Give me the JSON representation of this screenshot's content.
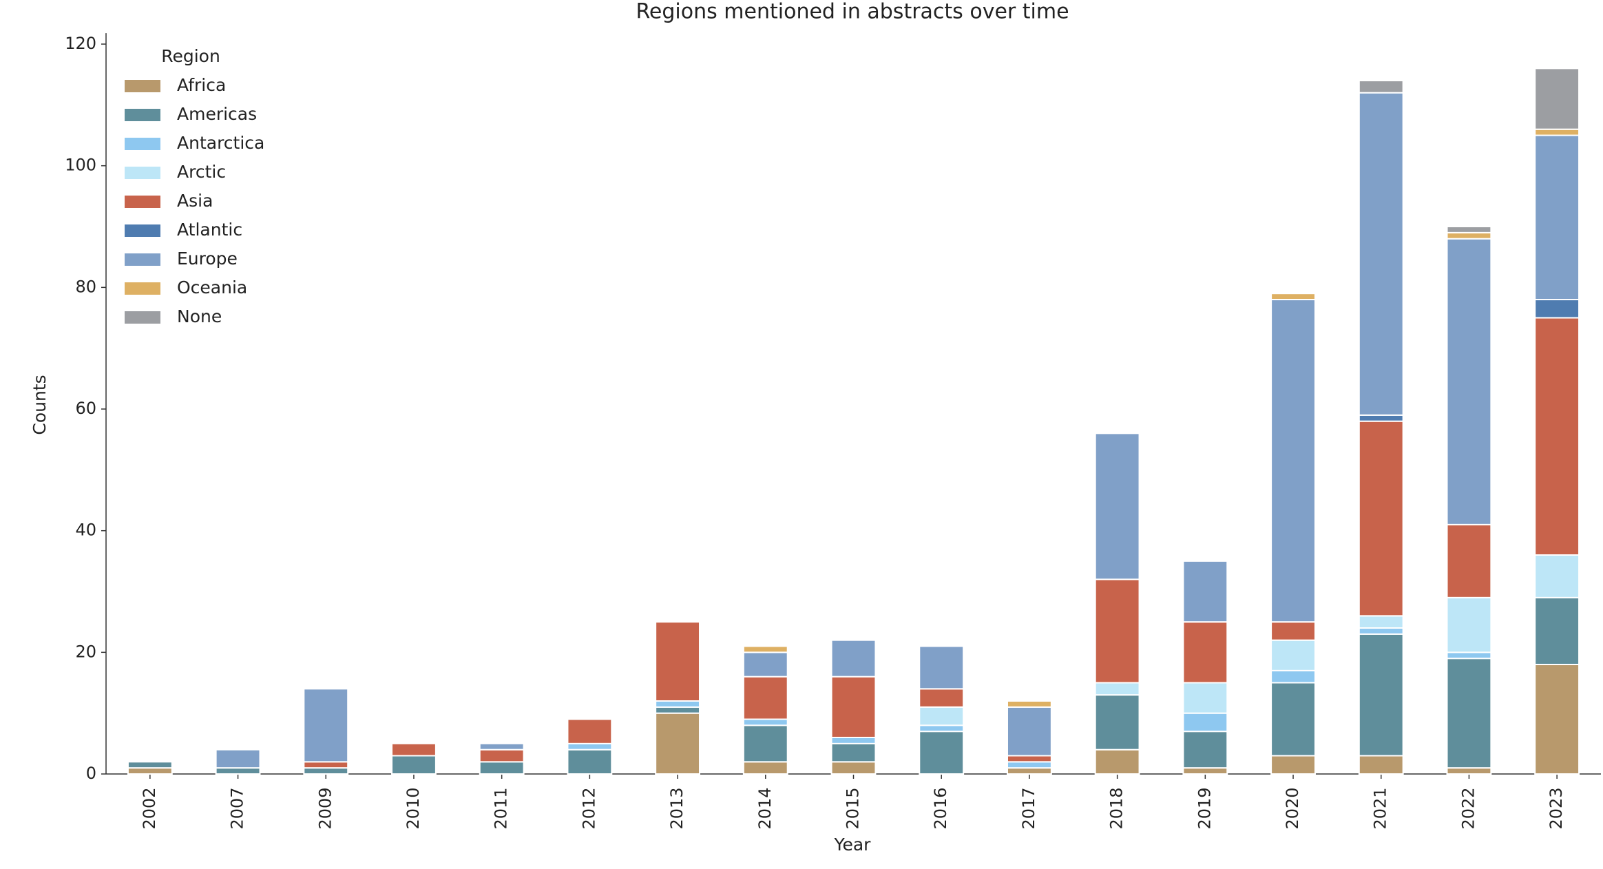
{
  "chart_data": {
    "type": "stacked_bar",
    "title": "Regions mentioned in abstracts over time",
    "x_label": "Year",
    "y_label": "Counts",
    "legend_title": "Region",
    "legend_position": "upper left",
    "categories": [
      "2002",
      "2007",
      "2009",
      "2010",
      "2011",
      "2012",
      "2013",
      "2014",
      "2015",
      "2016",
      "2017",
      "2018",
      "2019",
      "2020",
      "2021",
      "2022",
      "2023"
    ],
    "series": [
      {
        "name": "Africa",
        "color": "#b8996c",
        "values": [
          1,
          0,
          0,
          0,
          0,
          0,
          10,
          2,
          2,
          0,
          1,
          4,
          1,
          3,
          3,
          1,
          18
        ]
      },
      {
        "name": "Americas",
        "color": "#5f8e9b",
        "values": [
          1,
          1,
          1,
          3,
          2,
          4,
          1,
          6,
          3,
          7,
          0,
          9,
          6,
          12,
          20,
          18,
          11
        ]
      },
      {
        "name": "Antarctica",
        "color": "#8ec8f0",
        "values": [
          0,
          0,
          0,
          0,
          0,
          1,
          1,
          1,
          1,
          1,
          1,
          0,
          3,
          2,
          1,
          1,
          0
        ]
      },
      {
        "name": "Arctic",
        "color": "#bde6f7",
        "values": [
          0,
          0,
          0,
          0,
          0,
          0,
          0,
          0,
          0,
          3,
          0,
          2,
          5,
          5,
          2,
          9,
          7
        ]
      },
      {
        "name": "Asia",
        "color": "#c8634b",
        "values": [
          0,
          0,
          1,
          2,
          2,
          4,
          13,
          7,
          10,
          3,
          1,
          17,
          10,
          3,
          32,
          12,
          39
        ]
      },
      {
        "name": "Atlantic",
        "color": "#4f7cb0",
        "values": [
          0,
          0,
          0,
          0,
          0,
          0,
          0,
          0,
          0,
          0,
          0,
          0,
          0,
          0,
          1,
          0,
          3
        ]
      },
      {
        "name": "Europe",
        "color": "#80a0c8",
        "values": [
          0,
          3,
          12,
          0,
          1,
          0,
          0,
          4,
          6,
          7,
          8,
          24,
          10,
          53,
          53,
          47,
          27
        ]
      },
      {
        "name": "Oceania",
        "color": "#deb063",
        "values": [
          0,
          0,
          0,
          0,
          0,
          0,
          0,
          1,
          0,
          0,
          1,
          0,
          0,
          1,
          0,
          1,
          1
        ]
      },
      {
        "name": "None",
        "color": "#9c9ea2",
        "values": [
          0,
          0,
          0,
          0,
          0,
          0,
          0,
          0,
          0,
          0,
          0,
          0,
          0,
          0,
          2,
          1,
          10
        ]
      }
    ],
    "ylim": [
      0,
      121.8
    ],
    "yticks": [
      0,
      20,
      40,
      60,
      80,
      100,
      120
    ],
    "grid": false
  }
}
